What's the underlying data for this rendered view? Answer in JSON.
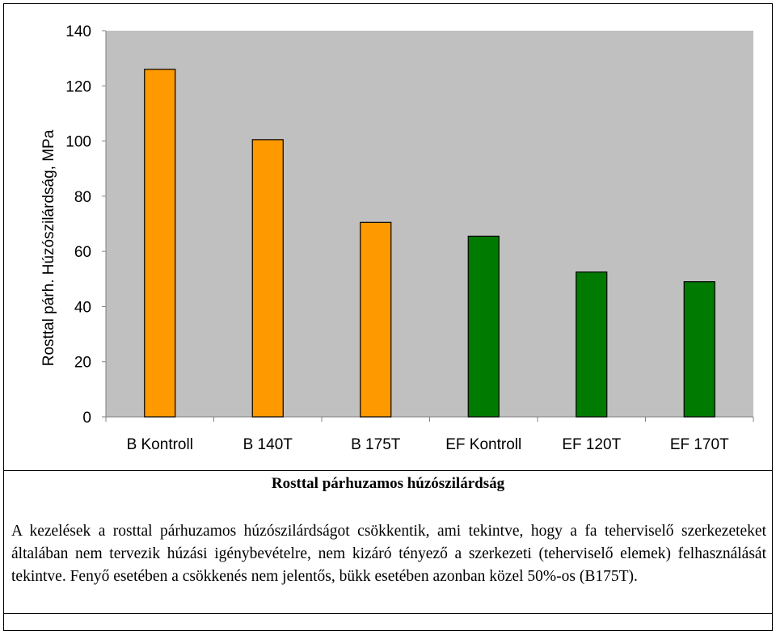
{
  "chart_data": {
    "type": "bar",
    "categories": [
      "B Kontroll",
      "B 140T",
      "B 175T",
      "EF Kontroll",
      "EF 120T",
      "EF 170T"
    ],
    "values": [
      126,
      100.5,
      70.5,
      65.5,
      52.5,
      49
    ],
    "colors": [
      "#FF9900",
      "#FF9900",
      "#FF9900",
      "#007A00",
      "#007A00",
      "#007A00"
    ],
    "ylabel": "Rosttal párh. Húzószilárdság, MPa",
    "xlabel": "",
    "ylim": [
      0,
      140
    ],
    "yticks": [
      0,
      20,
      40,
      60,
      80,
      100,
      120,
      140
    ],
    "plot_background": "#C0C0C0",
    "grid": false
  },
  "caption": {
    "title": "Rosttal párhuzamos húzószilárdság",
    "text": "A kezelések a rosttal párhuzamos húzószilárdságot csökkentik, ami tekintve, hogy a fa teherviselő szerkezeteket általában nem tervezik húzási igénybevételre, nem kizáró tényező a szerkezeti (teherviselő elemek) felhasználását tekintve. Fenyő esetében a csökkenés nem jelentős, bükk esetében azonban közel 50%-os (B175T)."
  }
}
